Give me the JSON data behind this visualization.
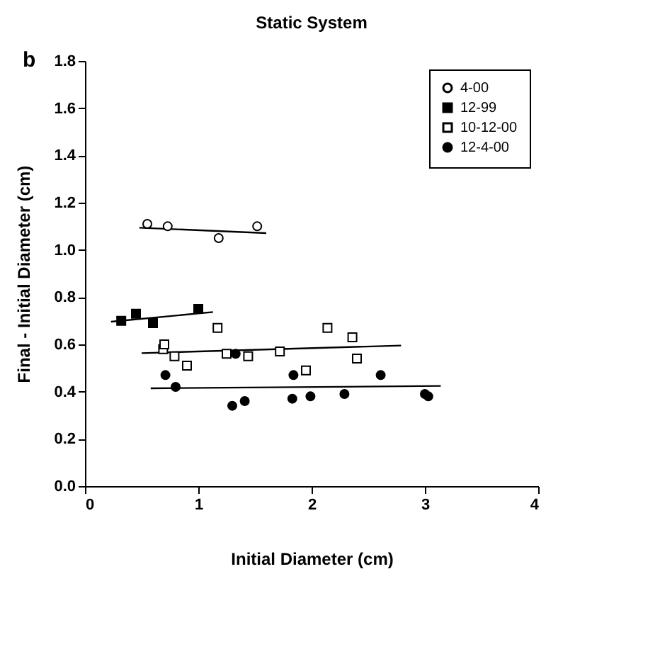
{
  "chart_data": {
    "type": "scatter",
    "title": "Static System",
    "xlabel": "Initial Diameter (cm)",
    "ylabel": "Final - Initial Diameter (cm)",
    "annotations": [
      "b"
    ],
    "xlim": [
      0,
      4
    ],
    "xticks": [
      0,
      1,
      2,
      3,
      4
    ],
    "ylim": [
      0,
      1.8
    ],
    "yticks": [
      {
        "value": 0,
        "label": "0.0"
      },
      {
        "value": 0.2,
        "label": "0.2"
      },
      {
        "value": 0.4,
        "label": "0.4"
      },
      {
        "value": 0.6,
        "label": "0.6"
      },
      {
        "value": 0.8,
        "label": "0.8"
      },
      {
        "value": 1,
        "label": "1.0"
      },
      {
        "value": 1.2,
        "label": "1.2"
      },
      {
        "value": 1.4,
        "label": "1.4"
      },
      {
        "value": 1.6,
        "label": "1.6"
      },
      {
        "value": 1.8,
        "label": "1.8"
      }
    ],
    "grid": false,
    "legend": "top right",
    "series": [
      {
        "name": "4-00",
        "marker": "circle",
        "color": "#ffffff",
        "x": [
          0.55,
          0.73,
          1.18,
          1.52
        ],
        "values": [
          1.11,
          1.1,
          1.05,
          1.1
        ]
      },
      {
        "name": "12-99",
        "marker": "square",
        "color": "#000000",
        "x": [
          0.32,
          0.45,
          0.6,
          1.0
        ],
        "values": [
          0.7,
          0.73,
          0.69,
          0.75
        ]
      },
      {
        "name": "10-12-00",
        "marker": "square",
        "color": "#ffffff",
        "x": [
          0.69,
          0.7,
          0.79,
          0.9,
          1.17,
          1.25,
          1.44,
          1.72,
          1.95,
          2.14,
          2.36,
          2.4
        ],
        "values": [
          0.58,
          0.6,
          0.55,
          0.51,
          0.67,
          0.56,
          0.55,
          0.57,
          0.49,
          0.67,
          0.63,
          0.54
        ]
      },
      {
        "name": "12-4-00",
        "marker": "circle",
        "color": "#000000",
        "x": [
          0.71,
          0.8,
          1.3,
          1.33,
          1.41,
          1.83,
          1.84,
          1.99,
          2.29,
          2.61,
          3.0,
          3.03
        ],
        "values": [
          0.47,
          0.42,
          0.34,
          0.56,
          0.36,
          0.37,
          0.47,
          0.38,
          0.39,
          0.47,
          0.39,
          0.38
        ]
      },
      {
        "type": "line",
        "color": "#000000",
        "x": [
          0.48,
          1.6
        ],
        "values": [
          1.094,
          1.071
        ]
      },
      {
        "type": "line",
        "color": "#000000",
        "x": [
          0.23,
          1.13
        ],
        "values": [
          0.696,
          0.737
        ]
      },
      {
        "type": "line",
        "color": "#000000",
        "x": [
          0.5,
          2.79
        ],
        "values": [
          0.563,
          0.595
        ]
      },
      {
        "type": "line",
        "color": "#000000",
        "x": [
          0.58,
          3.14
        ],
        "values": [
          0.414,
          0.424
        ]
      }
    ]
  }
}
